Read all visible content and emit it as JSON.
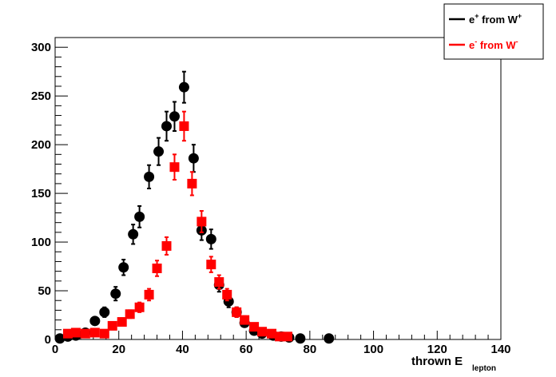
{
  "chart_data": {
    "type": "scatter",
    "xlabel": "thrown E",
    "xlabel_subscript": "lepton",
    "ylabel": "",
    "title": "",
    "xlim": [
      0,
      140
    ],
    "ylim": [
      0,
      310
    ],
    "xticks": [
      0,
      20,
      40,
      60,
      80,
      100,
      120,
      140
    ],
    "yticks": [
      0,
      50,
      100,
      150,
      200,
      250,
      300
    ],
    "grid": false,
    "legend_position": "top-right",
    "series": [
      {
        "name": "e+ from W+",
        "legend_base": "e",
        "legend_sup": "+",
        "legend_mid": " from W",
        "legend_sup2": "+",
        "color": "#000000",
        "marker": "circle",
        "x": [
          1.5,
          4,
          6.5,
          9.5,
          12.5,
          15.5,
          19,
          21.5,
          24.5,
          26.5,
          29.5,
          32.5,
          35,
          37.5,
          40.5,
          43.5,
          46,
          49,
          51.5,
          54.5,
          57,
          59.5,
          62.5,
          65,
          68.5,
          71,
          73.5,
          77,
          86
        ],
        "y": [
          1,
          3,
          4,
          7,
          19,
          28,
          47,
          74,
          108,
          126,
          167,
          193,
          219,
          229,
          259,
          186,
          112,
          103,
          56,
          39,
          28,
          17,
          9,
          6,
          4,
          3,
          2,
          1,
          1
        ],
        "err": [
          1,
          2,
          2,
          3,
          4,
          5,
          7,
          8,
          10,
          11,
          12,
          14,
          15,
          15,
          16,
          14,
          10,
          10,
          7,
          6,
          5,
          4,
          3,
          2,
          2,
          2,
          1,
          1,
          1
        ]
      },
      {
        "name": "e- from W-",
        "legend_base": "e",
        "legend_sup": "-",
        "legend_mid": " from W",
        "legend_sup2": "-",
        "color": "#ff0000",
        "marker": "square",
        "x": [
          4,
          6.5,
          9.5,
          12.5,
          15.5,
          18,
          21,
          23.5,
          26.5,
          29.5,
          32,
          35,
          37.5,
          40.5,
          43,
          46,
          49,
          51.5,
          54,
          57,
          59.5,
          62.5,
          65,
          68,
          70.5,
          73
        ],
        "y": [
          6,
          7,
          6,
          7,
          6,
          14,
          18,
          26,
          33,
          46,
          73,
          96,
          177,
          219,
          160,
          121,
          77,
          59,
          46,
          28,
          20,
          13,
          8,
          6,
          3,
          3
        ],
        "err": [
          2,
          2,
          2,
          2,
          2,
          3,
          4,
          4,
          5,
          6,
          8,
          9,
          13,
          15,
          12,
          11,
          8,
          7,
          6,
          5,
          4,
          3,
          2,
          2,
          1,
          1
        ]
      }
    ]
  }
}
